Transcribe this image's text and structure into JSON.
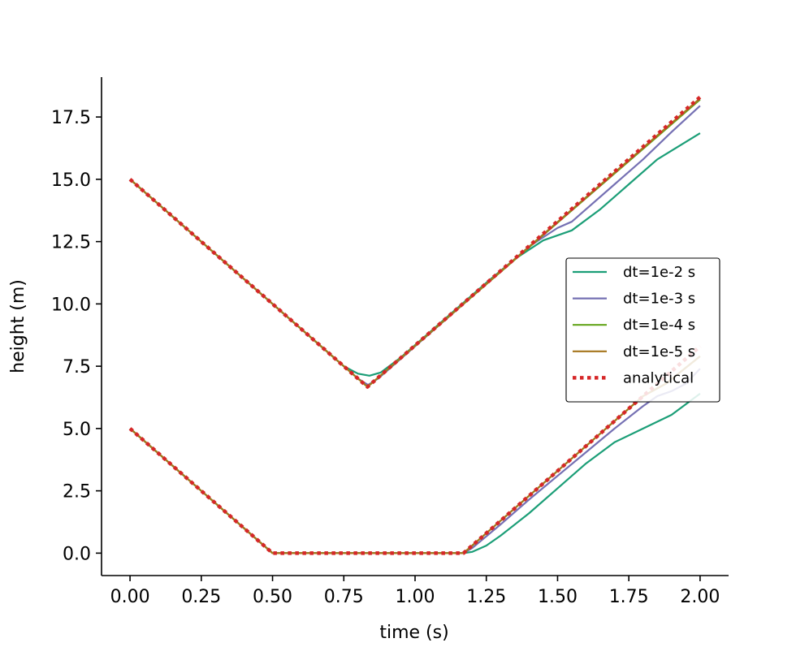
{
  "chart_data": {
    "type": "line",
    "title": "",
    "xlabel": "time (s)",
    "ylabel": "height (m)",
    "xlim": [
      -0.1,
      2.1
    ],
    "ylim": [
      -0.9,
      19.1
    ],
    "xticks": [
      0.0,
      0.25,
      0.5,
      0.75,
      1.0,
      1.25,
      1.5,
      1.75,
      2.0
    ],
    "xtick_labels": [
      "0.00",
      "0.25",
      "0.50",
      "0.75",
      "1.00",
      "1.25",
      "1.50",
      "1.75",
      "2.00"
    ],
    "yticks": [
      0.0,
      2.5,
      5.0,
      7.5,
      10.0,
      12.5,
      15.0,
      17.5
    ],
    "ytick_labels": [
      "0.0",
      "2.5",
      "5.0",
      "7.5",
      "10.0",
      "12.5",
      "15.0",
      "17.5"
    ],
    "grid": false,
    "legend_position": "center-right",
    "series": [
      {
        "name": "dt=1e-2 s",
        "color": "#1b9e77",
        "style": "solid",
        "curves": [
          {
            "x": [
              0.0,
              0.5,
              0.75,
              0.8,
              0.84,
              0.88,
              0.95,
              1.0,
              1.25,
              1.35,
              1.45,
              1.55,
              1.65,
              1.75,
              1.85,
              2.0
            ],
            "y": [
              15.0,
              10.0,
              7.5,
              7.2,
              7.12,
              7.25,
              7.85,
              8.35,
              10.85,
              11.8,
              12.55,
              12.95,
              13.8,
              14.8,
              15.8,
              16.85
            ]
          },
          {
            "x": [
              0.0,
              0.5,
              1.17,
              1.2,
              1.25,
              1.3,
              1.4,
              1.5,
              1.6,
              1.7,
              1.8,
              1.9,
              2.0
            ],
            "y": [
              5.0,
              0.0,
              0.0,
              0.05,
              0.3,
              0.7,
              1.6,
              2.6,
              3.6,
              4.45,
              5.0,
              5.55,
              6.4
            ]
          }
        ]
      },
      {
        "name": "dt=1e-3 s",
        "color": "#7570b3",
        "style": "solid",
        "curves": [
          {
            "x": [
              0.0,
              0.5,
              0.8,
              0.835,
              0.87,
              0.9,
              1.0,
              1.25,
              1.4,
              1.5,
              1.55,
              1.6,
              1.7,
              1.8,
              1.9,
              2.0
            ],
            "y": [
              15.0,
              10.0,
              7.0,
              6.75,
              7.0,
              7.3,
              8.3,
              10.8,
              12.3,
              13.05,
              13.3,
              13.8,
              14.8,
              15.8,
              16.9,
              17.95
            ]
          },
          {
            "x": [
              0.0,
              0.5,
              1.17,
              1.2,
              1.3,
              1.4,
              1.5,
              1.6,
              1.7,
              1.8,
              1.85,
              1.9,
              1.95,
              2.0
            ],
            "y": [
              5.0,
              0.0,
              0.0,
              0.2,
              1.15,
              2.15,
              3.1,
              4.05,
              5.0,
              5.9,
              6.3,
              6.5,
              6.8,
              7.4
            ]
          }
        ]
      },
      {
        "name": "dt=1e-4 s",
        "color": "#66a61e",
        "style": "solid",
        "curves": [
          {
            "x": [
              0.0,
              0.833,
              2.0
            ],
            "y": [
              15.0,
              6.67,
              18.2
            ]
          },
          {
            "x": [
              0.0,
              0.5,
              1.17,
              1.2,
              1.5,
              1.8,
              1.88,
              2.0
            ],
            "y": [
              5.0,
              0.0,
              0.0,
              0.3,
              3.3,
              6.3,
              6.8,
              7.9
            ]
          }
        ]
      },
      {
        "name": "dt=1e-5 s",
        "color": "#a6761d",
        "style": "solid",
        "curves": [
          {
            "x": [
              0.0,
              0.833,
              2.0
            ],
            "y": [
              15.0,
              6.67,
              18.25
            ]
          },
          {
            "x": [
              0.0,
              0.5,
              1.17,
              1.2,
              1.5,
              1.8,
              1.88,
              2.0
            ],
            "y": [
              5.0,
              0.0,
              0.0,
              0.3,
              3.3,
              6.3,
              6.8,
              7.9
            ]
          }
        ]
      },
      {
        "name": "analytical",
        "color": "#d62728",
        "style": "dotted",
        "curves": [
          {
            "x": [
              0.0,
              0.833,
              2.0
            ],
            "y": [
              15.0,
              6.67,
              18.3
            ]
          },
          {
            "x": [
              0.0,
              0.5,
              1.17,
              2.0
            ],
            "y": [
              5.0,
              0.0,
              0.0,
              8.3
            ]
          }
        ]
      }
    ]
  }
}
